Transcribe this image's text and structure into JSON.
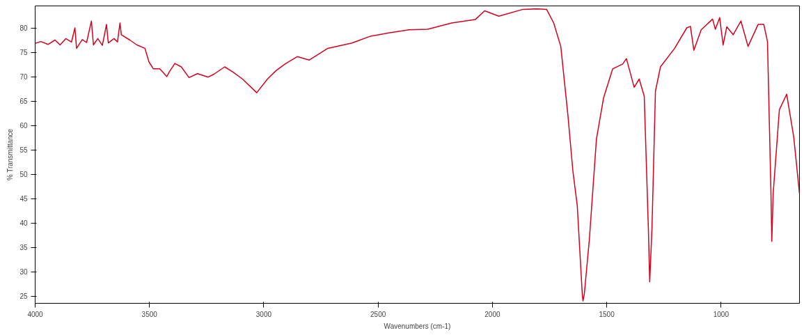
{
  "chart_data": {
    "type": "line",
    "xlabel": "Wavenumbers (cm-1)",
    "ylabel": "% Transmittance",
    "xlim": [
      4000,
      657
    ],
    "ylim": [
      23.5,
      84.5
    ],
    "xticks": [
      4000,
      3500,
      3000,
      2500,
      2000,
      1500,
      1000
    ],
    "yticks": [
      25,
      30,
      35,
      40,
      45,
      50,
      55,
      60,
      65,
      70,
      75,
      80
    ],
    "grid": false,
    "marker": "none",
    "line_style": "solid",
    "series": [
      {
        "color": "#d4001c",
        "x": [
          4000,
          3975,
          3944,
          3913,
          3891,
          3866,
          3841,
          3826,
          3819,
          3794,
          3775,
          3754,
          3745,
          3726,
          3706,
          3688,
          3680,
          3655,
          3640,
          3629,
          3623,
          3586,
          3555,
          3520,
          3502,
          3483,
          3455,
          3424,
          3414,
          3389,
          3361,
          3327,
          3290,
          3243,
          3218,
          3171,
          3134,
          3093,
          3031,
          2984,
          2947,
          2907,
          2854,
          2801,
          2720,
          2614,
          2533,
          2449,
          2364,
          2283,
          2178,
          2075,
          2034,
          1972,
          1866,
          1804,
          1763,
          1732,
          1701,
          1670,
          1648,
          1629,
          1607,
          1604,
          1598,
          1576,
          1545,
          1514,
          1474,
          1430,
          1414,
          1380,
          1358,
          1336,
          1318,
          1312,
          1302,
          1287,
          1265,
          1203,
          1150,
          1134,
          1119,
          1087,
          1037,
          1025,
          1006,
          991,
          975,
          947,
          913,
          882,
          838,
          813,
          797,
          782,
          778,
          772,
          745,
          713,
          682,
          657
        ],
        "values": [
          76.8,
          77.2,
          76.6,
          77.5,
          76.5,
          77.8,
          77.1,
          80,
          75.8,
          77.6,
          77,
          81.4,
          76.5,
          77.8,
          76.4,
          80.7,
          76.9,
          77.8,
          77.1,
          81,
          78.6,
          77.5,
          76.5,
          75.8,
          73,
          71.6,
          71.6,
          70,
          70.9,
          72.7,
          72,
          69.8,
          70.6,
          69.9,
          70.5,
          72,
          70.9,
          69.5,
          66.7,
          69.5,
          71.2,
          72.6,
          74.1,
          73.4,
          75.8,
          76.9,
          78.3,
          79,
          79.6,
          79.7,
          81,
          81.7,
          83.5,
          82.4,
          83.8,
          83.9,
          83.8,
          81,
          76.2,
          62.2,
          50.6,
          43.6,
          25.4,
          24,
          25.4,
          36.6,
          57.2,
          65.6,
          71.6,
          72.6,
          73.7,
          67.8,
          69.5,
          66,
          39,
          27.9,
          39,
          67,
          72,
          75.8,
          80,
          80.3,
          75.4,
          79.6,
          81.8,
          79.7,
          82.1,
          76.5,
          80.2,
          78.6,
          81.4,
          76.2,
          80.7,
          80.7,
          77.2,
          46.8,
          36.2,
          46,
          63.2,
          66.4,
          57.6,
          46
        ]
      }
    ]
  }
}
